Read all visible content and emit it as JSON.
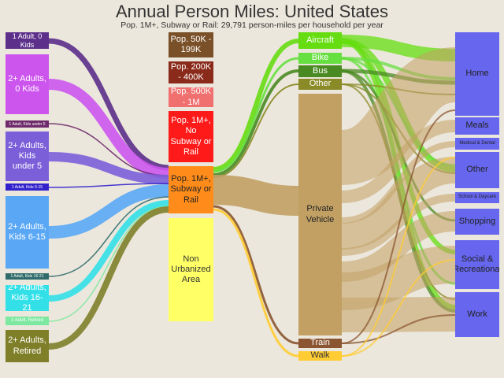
{
  "header": {
    "title": "Annual Person Miles: United States",
    "subtitle": "Pop. 1M+, Subway or Rail: 29,791 person-miles per household per year"
  },
  "households": [
    {
      "label": "1 Adult, 0 Kids",
      "color": "#5c2f8a",
      "text": "#ffffff"
    },
    {
      "label": "2+ Adults, 0 Kids",
      "color": "#cc55ee",
      "text": "#ffffff"
    },
    {
      "label": "1 Adult, Kids under 5",
      "color": "#6e2a6a",
      "text": "#ffffff"
    },
    {
      "label": "2+ Adults, Kids under 5",
      "color": "#7b5fd9",
      "text": "#ffffff"
    },
    {
      "label": "1 Adult, Kids 6-15",
      "color": "#3322cc",
      "text": "#ffffff"
    },
    {
      "label": "2+ Adults, Kids 6-15",
      "color": "#5aa8f5",
      "text": "#ffffff"
    },
    {
      "label": "1 Adult, Kids 16-21",
      "color": "#2f6b6b",
      "text": "#ffffff"
    },
    {
      "label": "2+ Adults, Kids 16-21",
      "color": "#33e0e8",
      "text": "#ffffff"
    },
    {
      "label": "1 Adult, Retired",
      "color": "#7de8a0",
      "text": "#ffffff"
    },
    {
      "label": "2+ Adults, Retired",
      "color": "#7f7f2a",
      "text": "#ffffff"
    }
  ],
  "areas": [
    {
      "label": "Pop. 50K - 199K",
      "color": "#7a5028",
      "text": "#ffffff"
    },
    {
      "label": "Pop. 200K - 400K",
      "color": "#8a2a1a",
      "text": "#ffffff"
    },
    {
      "label": "Pop. 500K - 1M",
      "color": "#f07070",
      "text": "#ffffff"
    },
    {
      "label": "Pop. 1M+, No Subway or Rail",
      "color": "#ff1a1a",
      "text": "#ffffff"
    },
    {
      "label": "Pop. 1M+, Subway or Rail",
      "color": "#ff8c1a",
      "text": "#222222"
    },
    {
      "label": "Non Urbanized Area",
      "color": "#ffff66",
      "text": "#333333"
    }
  ],
  "modes": [
    {
      "label": "Aircraft",
      "color": "#66dd11",
      "text": "#ffffff"
    },
    {
      "label": "Bike",
      "color": "#66e040",
      "text": "#ffffff"
    },
    {
      "label": "Bus",
      "color": "#4a8a22",
      "text": "#ffffff"
    },
    {
      "label": "Other",
      "color": "#8a8a26",
      "text": "#ffffff"
    },
    {
      "label": "Private Vehicle",
      "color": "#c2a064",
      "text": "#222222"
    },
    {
      "label": "Train",
      "color": "#8a5530",
      "text": "#ffffff"
    },
    {
      "label": "Walk",
      "color": "#ffcc33",
      "text": "#333333"
    }
  ],
  "purposes": [
    {
      "label": "Home",
      "color": "#6666ee",
      "text": "#222222"
    },
    {
      "label": "Meals",
      "color": "#6666ee",
      "text": "#222222"
    },
    {
      "label": "Medical & Dental",
      "color": "#6666ee",
      "text": "#222222"
    },
    {
      "label": "Other",
      "color": "#6666ee",
      "text": "#222222"
    },
    {
      "label": "School & Daycare",
      "color": "#6666ee",
      "text": "#222222"
    },
    {
      "label": "Shopping",
      "color": "#6666ee",
      "text": "#222222"
    },
    {
      "label": "Social & Recreational",
      "color": "#6666ee",
      "text": "#222222"
    },
    {
      "label": "Work",
      "color": "#6666ee",
      "text": "#222222"
    }
  ]
}
